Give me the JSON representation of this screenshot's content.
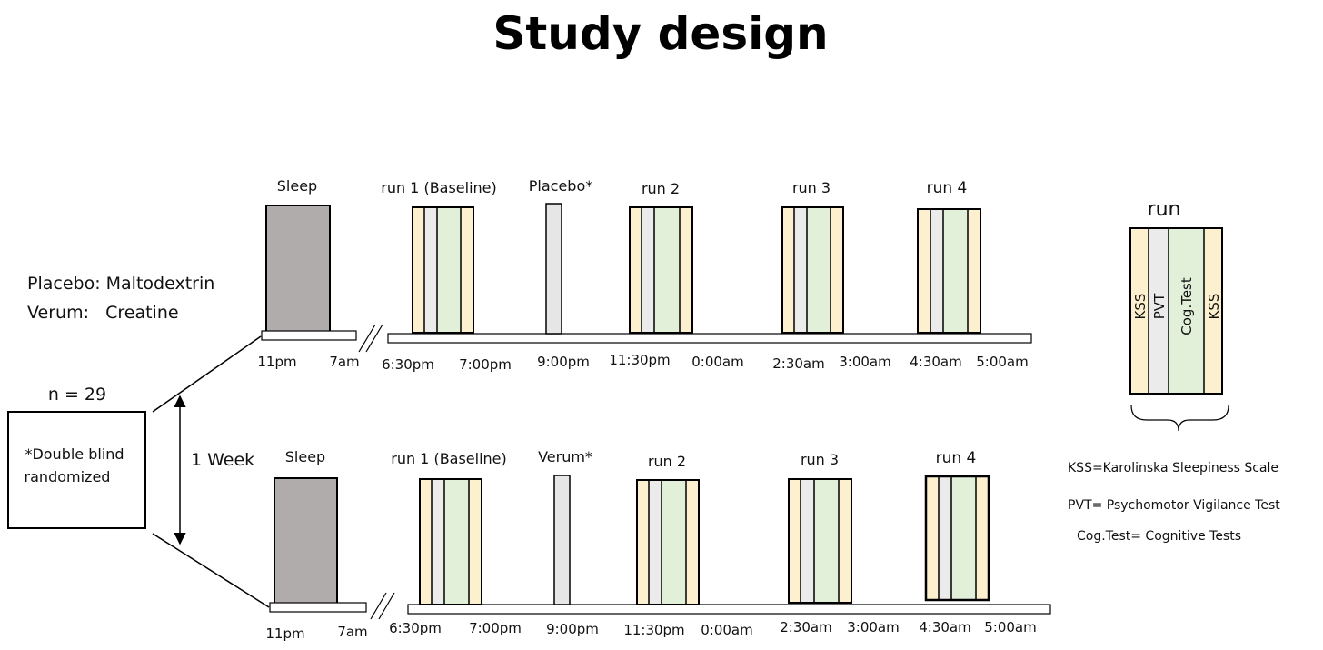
{
  "title": "Study design",
  "colors": {
    "kss": "#fdf0cf",
    "pvt": "#ebebeb",
    "cog": "#e2f0d9",
    "sleep": "#b0acab",
    "dose": "#e6e6e6",
    "stroke": "#000000"
  },
  "legend_text": {
    "placebo": "Placebo: Maltodextrin",
    "verum": "Verum:   Creatine"
  },
  "participants": {
    "n": "n = 29",
    "line1": "*Double blind",
    "line2": "randomized"
  },
  "interval": "1 Week",
  "arms": [
    {
      "sleep_label": "Sleep",
      "run1_label": "run 1 (Baseline)",
      "dose_label": "Placebo*",
      "run2_label": "run 2",
      "run3_label": "run 3",
      "run4_label": "run 4",
      "times": [
        "11pm",
        "7am",
        "6:30pm",
        "7:00pm",
        "9:00pm",
        "11:30pm",
        "0:00am",
        "2:30am",
        "3:00am",
        "4:30am",
        "5:00am"
      ]
    },
    {
      "sleep_label": "Sleep",
      "run1_label": "run 1 (Baseline)",
      "dose_label": "Verum*",
      "run2_label": "run 2",
      "run3_label": "run 3",
      "run4_label": "run 4",
      "times": [
        "11pm",
        "7am",
        "6:30pm",
        "7:00pm",
        "9:00pm",
        "11:30pm",
        "0:00am",
        "2:30am",
        "3:00am",
        "4:30am",
        "5:00am"
      ]
    }
  ],
  "run_detail": {
    "title": "run",
    "segments": [
      "KSS",
      "PVT",
      "Cog.Test",
      "KSS"
    ]
  },
  "abbreviations": {
    "kss": "KSS=Karolinska Sleepiness Scale",
    "pvt": "PVT= Psychomotor Vigilance Test",
    "cog": "Cog.Test= Cognitive Tests"
  }
}
